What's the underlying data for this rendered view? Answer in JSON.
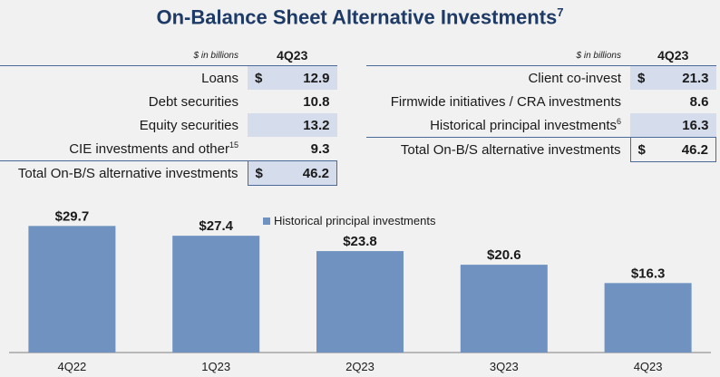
{
  "title": "On-Balance Sheet Alternative Investments",
  "title_footnote": "7",
  "left_table": {
    "unit": "$ in billions",
    "period": "4Q23",
    "rows": [
      {
        "label": "Loans",
        "footnote": "",
        "currency": "$",
        "value": "12.9"
      },
      {
        "label": "Debt securities",
        "footnote": "",
        "currency": "",
        "value": "10.8"
      },
      {
        "label": "Equity securities",
        "footnote": "",
        "currency": "",
        "value": "13.2"
      },
      {
        "label": "CIE investments and other",
        "footnote": "15",
        "currency": "",
        "value": "9.3"
      }
    ],
    "total": {
      "label": "Total On-B/S alternative investments",
      "currency": "$",
      "value": "46.2"
    }
  },
  "right_table": {
    "unit": "$ in billions",
    "period": "4Q23",
    "rows": [
      {
        "label": "Client co-invest",
        "footnote": "",
        "currency": "$",
        "value": "21.3"
      },
      {
        "label": "Firmwide initiatives / CRA investments",
        "footnote": "",
        "currency": "",
        "value": "8.6"
      },
      {
        "label": "Historical principal investments",
        "footnote": "6",
        "currency": "",
        "value": "16.3"
      }
    ],
    "total": {
      "label": "Total On-B/S alternative investments",
      "currency": "$",
      "value": "46.2"
    }
  },
  "chart_data": {
    "type": "bar",
    "categories": [
      "4Q22",
      "1Q23",
      "2Q23",
      "3Q23",
      "4Q23"
    ],
    "series": [
      {
        "name": "Historical principal investments",
        "values": [
          29.7,
          27.4,
          23.8,
          20.6,
          16.3
        ]
      }
    ],
    "data_labels": [
      "$29.7",
      "$27.4",
      "$23.8",
      "$20.6",
      "$16.3"
    ],
    "ylim": [
      0,
      37
    ],
    "legend_position": "top",
    "grid": false,
    "bar_color": "#6f92c0"
  }
}
